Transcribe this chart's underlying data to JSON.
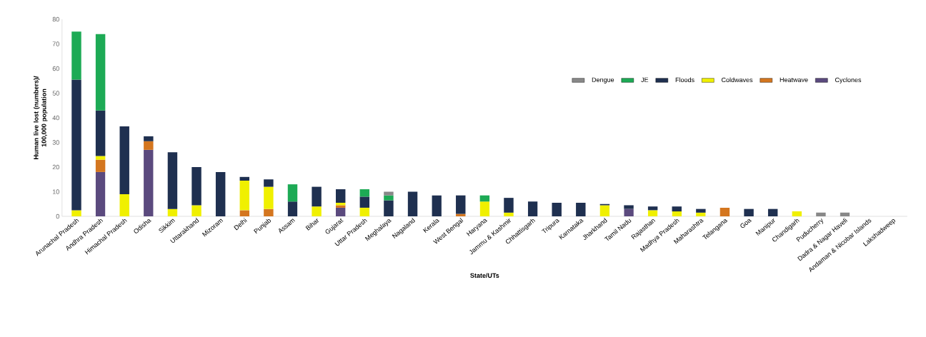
{
  "chart_data": {
    "type": "bar",
    "stacked": true,
    "xlabel": "State/UTs",
    "ylabel": "Human live lost (numbers)/ 100,000 population",
    "categories": [
      "Arunachal Pradesh",
      "Andhra Pradesh",
      "Himachal Pradesh",
      "Odisha",
      "Sikkim",
      "Uttarakhand",
      "Mizoram",
      "Delhi",
      "Punjab",
      "Assam",
      "Bihar",
      "Gujarat",
      "Uttar Pradesh",
      "Meghalaya",
      "Nagaland",
      "Kerala",
      "West Bengal",
      "Haryana",
      "Jammu & Kashmir",
      "Chhattisgarh",
      "Tripura",
      "Karnataka",
      "Jharkhand",
      "Tamil Nadu",
      "Rajasthan",
      "Madhya Pradesh",
      "Maharashtra",
      "Telangana",
      "Goa",
      "Manipur",
      "Chandigarh",
      "Puducherry",
      "Dadra & Nagar Haveli",
      "Andaman & Nicobar Islands",
      "Lakshadweep"
    ],
    "series": [
      {
        "name": "Cyclones",
        "color": "#5b4a7e",
        "values": [
          null,
          18,
          null,
          27,
          null,
          null,
          null,
          null,
          null,
          null,
          null,
          3.5,
          null,
          null,
          null,
          null,
          null,
          null,
          null,
          null,
          null,
          null,
          null,
          3,
          null,
          null,
          null,
          null,
          null,
          null,
          null,
          null,
          null,
          null,
          null
        ]
      },
      {
        "name": "Heatwave",
        "color": "#d4761f",
        "values": [
          null,
          5,
          null,
          3.5,
          null,
          null,
          null,
          2.5,
          3,
          null,
          null,
          1,
          null,
          null,
          null,
          null,
          1,
          null,
          null,
          null,
          null,
          null,
          null,
          null,
          null,
          null,
          null,
          3.5,
          null,
          null,
          null,
          null,
          null,
          null,
          null
        ]
      },
      {
        "name": "Coldwaves",
        "color": "#f0f000",
        "values": [
          2.5,
          1.5,
          9,
          null,
          3,
          4.5,
          null,
          12,
          9,
          null,
          4,
          1,
          3.5,
          null,
          null,
          null,
          null,
          6,
          1.5,
          null,
          null,
          null,
          4.5,
          null,
          2.5,
          2,
          1.5,
          null,
          null,
          null,
          2,
          null,
          null,
          null,
          null
        ]
      },
      {
        "name": "Floods",
        "color": "#1f3050",
        "values": [
          53,
          18.5,
          27.5,
          2,
          23,
          15.5,
          18,
          1.5,
          3,
          6,
          8,
          5.5,
          4.5,
          6.5,
          10,
          8.5,
          7.5,
          null,
          6,
          6,
          5.5,
          5.5,
          0.5,
          1.5,
          1.5,
          2,
          1.5,
          null,
          3,
          3,
          null,
          null,
          null,
          null,
          null
        ]
      },
      {
        "name": "JE",
        "color": "#1daa55",
        "values": [
          19.5,
          31,
          null,
          null,
          null,
          null,
          null,
          null,
          null,
          7,
          null,
          null,
          3,
          2,
          null,
          null,
          null,
          2.5,
          null,
          null,
          null,
          null,
          null,
          null,
          null,
          null,
          null,
          null,
          null,
          null,
          null,
          null,
          null,
          null,
          null
        ]
      },
      {
        "name": "Dengue",
        "color": "#888888",
        "values": [
          null,
          null,
          null,
          null,
          null,
          null,
          null,
          null,
          null,
          null,
          null,
          null,
          null,
          1.5,
          null,
          null,
          null,
          null,
          null,
          null,
          null,
          null,
          null,
          null,
          null,
          null,
          null,
          null,
          null,
          null,
          null,
          1.5,
          1.5,
          null,
          null
        ]
      }
    ],
    "ylim": [
      0,
      80
    ],
    "yticks": [
      0,
      10,
      20,
      30,
      40,
      50,
      60,
      70,
      80
    ],
    "legend": "top right"
  }
}
